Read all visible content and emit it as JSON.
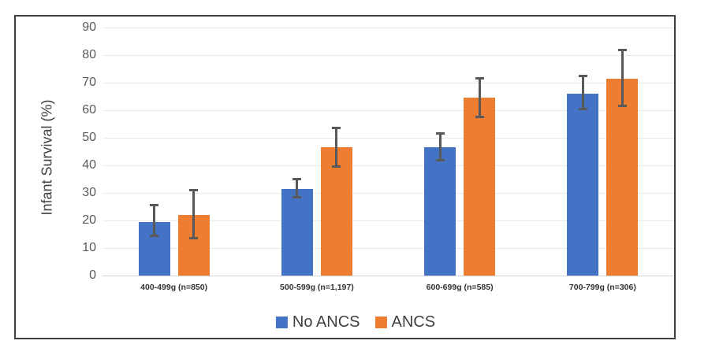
{
  "chart_data": {
    "type": "bar",
    "title": "",
    "xlabel": "",
    "ylabel": "Infant Survival (%)",
    "ylim": [
      0,
      90
    ],
    "ytick_step": 10,
    "grid": "horizontal",
    "legend_position": "bottom",
    "error_bar_color": "#595959",
    "categories": [
      "400-499g (n=850)",
      "500-599g (n=1,197)",
      "600-699g (n=585)",
      "700-799g (n=306)"
    ],
    "series": [
      {
        "name": "No ANCS",
        "color": "#4472C4",
        "values": [
          19.5,
          31.5,
          46.5,
          66
        ],
        "error_low": [
          14.5,
          28.5,
          42,
          60.5
        ],
        "error_high": [
          25.5,
          35,
          51.5,
          72.5
        ]
      },
      {
        "name": "ANCS",
        "color": "#ED7D31",
        "values": [
          22,
          46.5,
          64.5,
          71.5
        ],
        "error_low": [
          13.5,
          39.5,
          57.5,
          61.5
        ],
        "error_high": [
          31,
          53.5,
          71.5,
          82
        ]
      }
    ]
  },
  "colors": {
    "border": "#3f3f3f",
    "gridline": "#eaeaea",
    "axis_text": "#595959"
  }
}
